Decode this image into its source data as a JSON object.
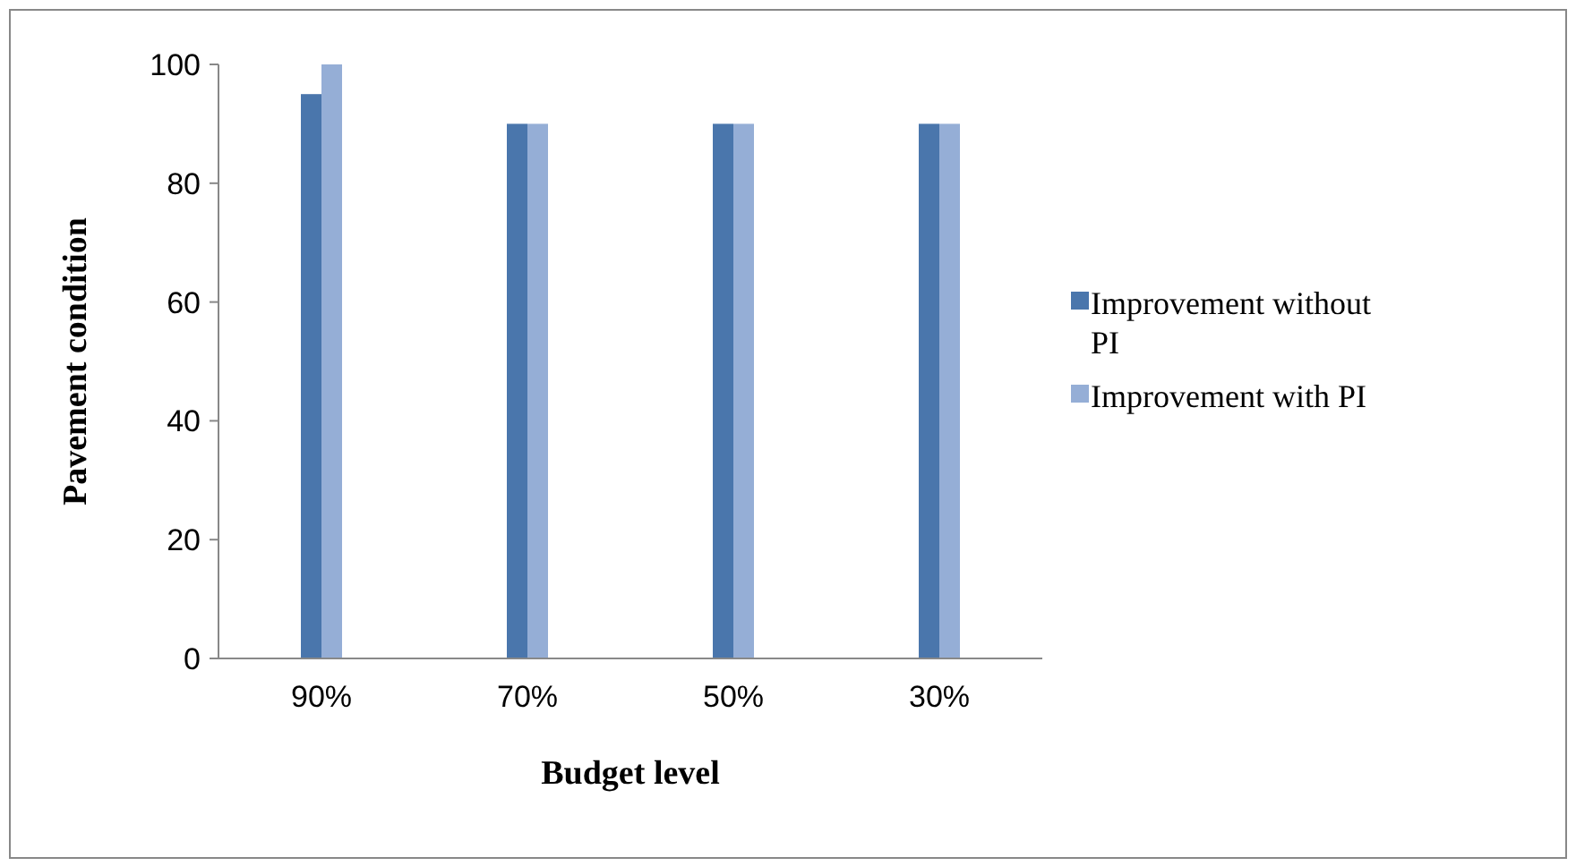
{
  "chart_data": {
    "type": "bar",
    "xlabel": "Budget level",
    "ylabel": "Pavement condition",
    "categories": [
      "90%",
      "70%",
      "50%",
      "30%"
    ],
    "series": [
      {
        "name": "Improvement without PI",
        "color": "#4a76ac",
        "values": [
          95,
          90,
          90,
          90
        ]
      },
      {
        "name": "Improvement with PI",
        "color": "#95aed6",
        "values": [
          100,
          90,
          90,
          90
        ]
      }
    ],
    "ylim": [
      0,
      100
    ],
    "yticks": [
      0,
      20,
      40,
      60,
      80,
      100
    ],
    "grid": false,
    "legend": "right"
  }
}
